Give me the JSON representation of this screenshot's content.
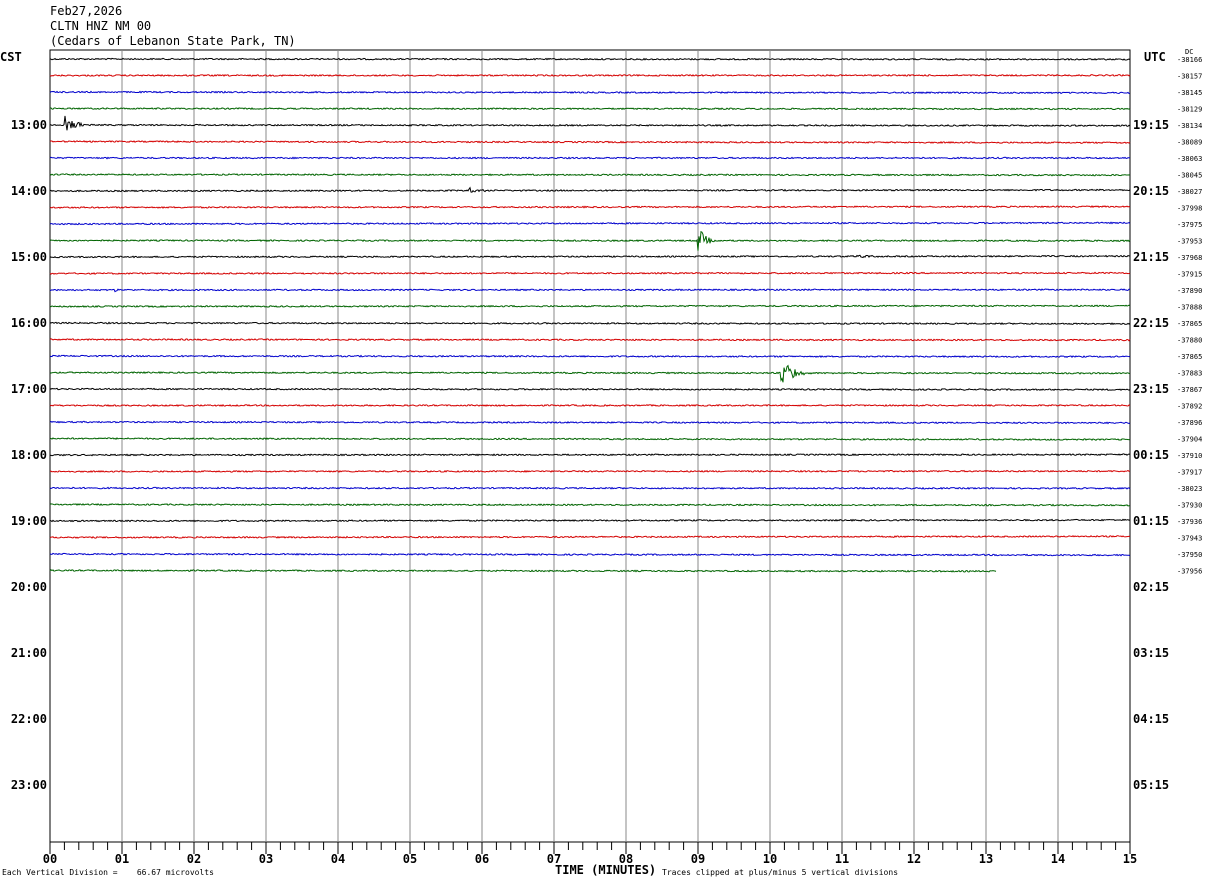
{
  "header": {
    "date": "Feb27,2026",
    "station": "CLTN HNZ NM 00",
    "location": "(Cedars of Lebanon State Park, TN)"
  },
  "corners": {
    "left_tz": "CST",
    "right_tz": "UTC",
    "dc_label": "DC"
  },
  "footer": {
    "x_title": "TIME (MINUTES)",
    "division_note": "Each Vertical Division =    66.67 microvolts",
    "clip_note": "Traces clipped at plus/minus 5 vertical divisions"
  },
  "chart_data": {
    "type": "line",
    "title": "",
    "xlabel": "TIME (MINUTES)",
    "xlim": [
      0,
      15
    ],
    "x_ticks": [
      "00",
      "01",
      "02",
      "03",
      "04",
      "05",
      "06",
      "07",
      "08",
      "09",
      "10",
      "11",
      "12",
      "13",
      "14",
      "15"
    ],
    "left_hour_labels": [
      "13:00",
      "14:00",
      "15:00",
      "16:00",
      "17:00",
      "18:00",
      "19:00",
      "20:00",
      "21:00",
      "22:00",
      "23:00"
    ],
    "right_hour_labels": [
      "19:15",
      "20:15",
      "21:15",
      "22:15",
      "23:15",
      "00:15",
      "01:15",
      "02:15",
      "03:15",
      "04:15",
      "05:15"
    ],
    "hours_per_page": 12,
    "traces_per_hour": 4,
    "trace_colors": [
      "#000000",
      "#d40000",
      "#0000cc",
      "#006400"
    ],
    "dc_offsets": [
      "-38166",
      "-38157",
      "-38145",
      "-38129",
      "-38134",
      "-38089",
      "-38063",
      "-38045",
      "-38027",
      "-37998",
      "-37975",
      "-37953",
      "-37968",
      "-37915",
      "-37890",
      "-37888",
      "-37865",
      "-37880",
      "-37865",
      "-37883",
      "-37867",
      "-37892",
      "-37896",
      "-37904",
      "-37910",
      "-37917",
      "-38023",
      "-37930",
      "-37936",
      "-37943",
      "-37950",
      "-37956"
    ],
    "last_trace_end_minute": 13.15,
    "events": [
      {
        "trace": 4,
        "minute": 0.2,
        "amplitude": 9,
        "duration": 0.6
      },
      {
        "trace": 8,
        "minute": 5.8,
        "amplitude": 3,
        "duration": 0.5
      },
      {
        "trace": 11,
        "minute": 9.0,
        "amplitude": 16,
        "duration": 0.35
      },
      {
        "trace": 12,
        "minute": 11.2,
        "amplitude": 2,
        "duration": 0.5
      },
      {
        "trace": 14,
        "minute": 0.9,
        "amplitude": 3,
        "duration": 0.1
      },
      {
        "trace": 19,
        "minute": 10.15,
        "amplitude": 20,
        "duration": 0.5
      }
    ]
  }
}
